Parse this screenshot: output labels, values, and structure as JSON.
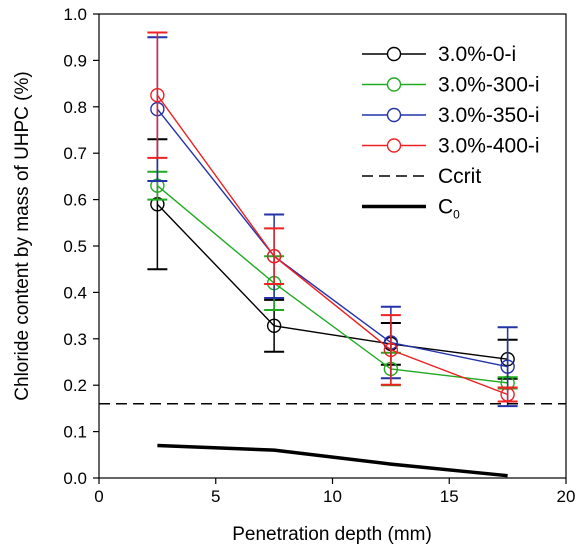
{
  "chart_data": {
    "type": "line",
    "title": "",
    "xlabel": "Penetration depth (mm)",
    "ylabel": "Chloride content by mass of UHPC (%)",
    "xlim": [
      0,
      20
    ],
    "ylim": [
      0,
      1.0
    ],
    "xticks": [
      0,
      5,
      10,
      15,
      20
    ],
    "yticks": [
      0.0,
      0.1,
      0.2,
      0.3,
      0.4,
      0.5,
      0.6,
      0.7,
      0.8,
      0.9,
      1.0
    ],
    "grid": false,
    "legend_position": "top-right",
    "series": [
      {
        "name": "3.0%-0-i",
        "color": "#000000",
        "marker": "circle",
        "x": [
          2.5,
          7.5,
          12.5,
          17.5
        ],
        "y": [
          0.59,
          0.328,
          0.289,
          0.256
        ],
        "error": [
          0.14,
          0.056,
          0.045,
          0.042
        ]
      },
      {
        "name": "3.0%-300-i",
        "color": "#22aa22",
        "marker": "circle",
        "x": [
          2.5,
          7.5,
          12.5,
          17.5
        ],
        "y": [
          0.63,
          0.42,
          0.235,
          0.205
        ],
        "error": [
          0.03,
          0.058,
          0.035,
          0.012
        ]
      },
      {
        "name": "3.0%-350-i",
        "color": "#2233aa",
        "marker": "circle",
        "x": [
          2.5,
          7.5,
          12.5,
          17.5
        ],
        "y": [
          0.795,
          0.478,
          0.292,
          0.24
        ],
        "error": [
          0.155,
          0.09,
          0.077,
          0.085
        ]
      },
      {
        "name": "3.0%-400-i",
        "color": "#ee2222",
        "marker": "circle",
        "x": [
          2.5,
          7.5,
          12.5,
          17.5
        ],
        "y": [
          0.825,
          0.478,
          0.276,
          0.18
        ],
        "error": [
          0.135,
          0.06,
          0.075,
          0.015
        ]
      },
      {
        "name": "Ccrit",
        "color": "#000000",
        "style": "dashed",
        "x": [
          0,
          20
        ],
        "y": [
          0.16,
          0.16
        ]
      },
      {
        "name": "C0",
        "display_name": "C",
        "display_sub": "0",
        "color": "#000000",
        "style": "thick",
        "x": [
          2.5,
          7.5,
          12.5,
          17.5
        ],
        "y": [
          0.07,
          0.06,
          0.03,
          0.005
        ]
      }
    ]
  }
}
